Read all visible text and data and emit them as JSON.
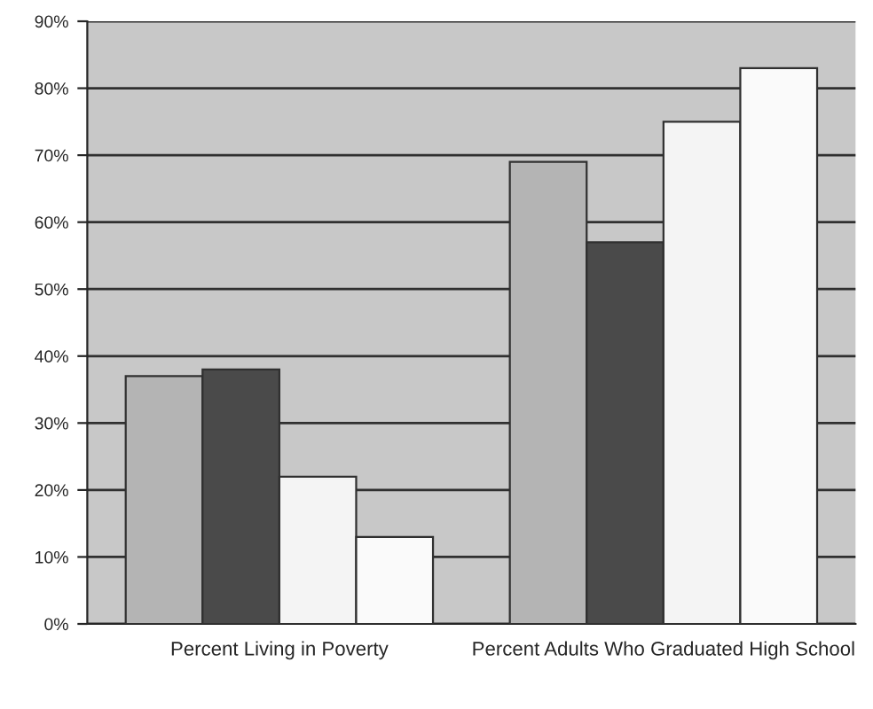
{
  "chart_data": {
    "type": "bar",
    "categories": [
      "Percent Living in Poverty",
      "Percent Adults Who Graduated High School"
    ],
    "series": [
      {
        "color": "#b4b4b4",
        "values": [
          37,
          69
        ]
      },
      {
        "color": "#4a4a4a",
        "values": [
          38,
          57
        ]
      },
      {
        "color": "#f4f4f4",
        "values": [
          22,
          75
        ]
      },
      {
        "color": "#fafafa",
        "values": [
          13,
          83
        ]
      }
    ],
    "ylim": [
      0,
      90
    ],
    "yticks": [
      {
        "value": 0,
        "label": "0%"
      },
      {
        "value": 10,
        "label": "10%"
      },
      {
        "value": 20,
        "label": "20%"
      },
      {
        "value": 30,
        "label": "30%"
      },
      {
        "value": 40,
        "label": "40%"
      },
      {
        "value": 50,
        "label": "50%"
      },
      {
        "value": 60,
        "label": "60%"
      },
      {
        "value": 70,
        "label": "70%"
      },
      {
        "value": 80,
        "label": "80%"
      },
      {
        "value": 90,
        "label": "90%"
      }
    ],
    "grid": "y",
    "legend": false
  }
}
